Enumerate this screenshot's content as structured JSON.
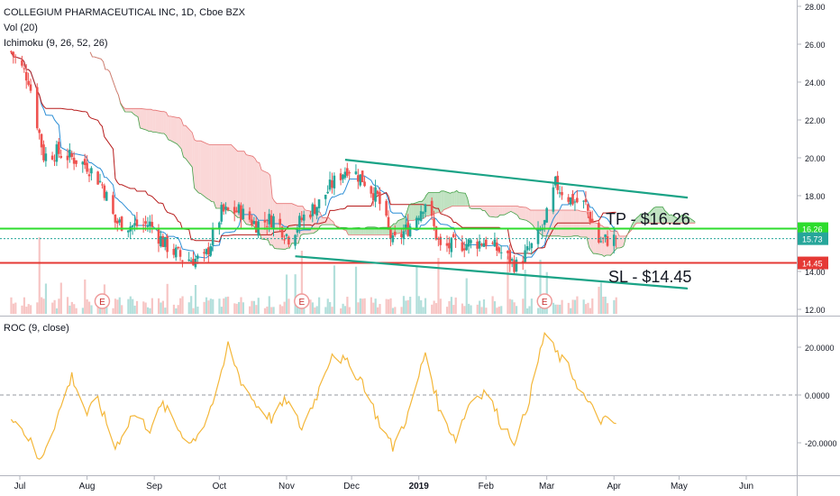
{
  "header": {
    "symbol_line": "COLLEGIUM PHARMACEUTICAL INC, 1D, Cboe BZX",
    "vol_label": "Vol (20)",
    "ichimoku_label": "Ichimoku (9, 26, 52, 26)"
  },
  "roc_panel": {
    "label": "ROC (9, close)"
  },
  "annotations": {
    "tp_text": "TP - $16.26",
    "sl_text": "SL - $14.45"
  },
  "colors": {
    "up": "#26a69a",
    "down": "#ef5350",
    "tp_line": "#2ddc2d",
    "sl_line": "#e53935",
    "channel": "#1aa386",
    "roc_line": "#f4b73a",
    "tenkan": "#2d8fd6",
    "kijun": "#b71c1c",
    "cloud_bull": "#a5d6a7",
    "cloud_bear": "#f8c6c6"
  },
  "chart_data": [
    {
      "type": "candlestick",
      "title": "COLLEGIUM PHARMACEUTICAL INC, 1D, Cboe BZX",
      "y_axis": {
        "ticks": [
          "28.00",
          "26.00",
          "24.00",
          "22.00",
          "20.00",
          "18.00",
          "16.00",
          "14.00",
          "12.00"
        ],
        "ylim": [
          11.8,
          28.4
        ]
      },
      "x_axis": {
        "ticks": [
          "Jul",
          "Aug",
          "Sep",
          "Oct",
          "Nov",
          "Dec",
          "2019",
          "Feb",
          "Mar",
          "Apr",
          "May",
          "Jun"
        ]
      },
      "price_labels": [
        {
          "label": "16.26",
          "value": 16.26,
          "color": "#2ddc2d"
        },
        {
          "label": "15.73",
          "value": 15.73,
          "color": "#26a69a"
        },
        {
          "label": "14.45",
          "value": 14.45,
          "color": "#e53935"
        }
      ],
      "horizontal_lines": [
        {
          "name": "TP",
          "value": 16.26
        },
        {
          "name": "SL",
          "value": 14.45
        }
      ],
      "channel": {
        "upper": [
          {
            "date": "2018-11-28",
            "value": 19.9
          },
          {
            "date": "2019-05-05",
            "value": 17.9
          }
        ],
        "lower": [
          {
            "date": "2018-11-05",
            "value": 14.8
          },
          {
            "date": "2019-05-05",
            "value": 13.1
          }
        ]
      },
      "close_approx": [
        {
          "date": "2018-06-27",
          "value": 25.6
        },
        {
          "date": "2018-07-05",
          "value": 24.2
        },
        {
          "date": "2018-07-12",
          "value": 20.1
        },
        {
          "date": "2018-07-18",
          "value": 20.3
        },
        {
          "date": "2018-07-25",
          "value": 20.0
        },
        {
          "date": "2018-08-01",
          "value": 19.6
        },
        {
          "date": "2018-08-08",
          "value": 18.6
        },
        {
          "date": "2018-08-14",
          "value": 16.6
        },
        {
          "date": "2018-08-22",
          "value": 16.4
        },
        {
          "date": "2018-08-30",
          "value": 16.5
        },
        {
          "date": "2018-09-06",
          "value": 15.4
        },
        {
          "date": "2018-09-14",
          "value": 14.7
        },
        {
          "date": "2018-09-24",
          "value": 14.6
        },
        {
          "date": "2018-10-02",
          "value": 17.1
        },
        {
          "date": "2018-10-10",
          "value": 17.2
        },
        {
          "date": "2018-10-18",
          "value": 16.5
        },
        {
          "date": "2018-10-26",
          "value": 16.8
        },
        {
          "date": "2018-11-02",
          "value": 15.8
        },
        {
          "date": "2018-11-09",
          "value": 16.9
        },
        {
          "date": "2018-11-16",
          "value": 17.6
        },
        {
          "date": "2018-11-22",
          "value": 18.6
        },
        {
          "date": "2018-11-29",
          "value": 19.5
        },
        {
          "date": "2018-12-06",
          "value": 18.9
        },
        {
          "date": "2018-12-13",
          "value": 17.9
        },
        {
          "date": "2018-12-20",
          "value": 15.5
        },
        {
          "date": "2018-12-28",
          "value": 16.4
        },
        {
          "date": "2019-01-04",
          "value": 17.7
        },
        {
          "date": "2019-01-11",
          "value": 15.2
        },
        {
          "date": "2019-01-18",
          "value": 15.4
        },
        {
          "date": "2019-01-25",
          "value": 15.5
        },
        {
          "date": "2019-02-01",
          "value": 15.6
        },
        {
          "date": "2019-02-08",
          "value": 15.0
        },
        {
          "date": "2019-02-15",
          "value": 14.3
        },
        {
          "date": "2019-02-22",
          "value": 15.3
        },
        {
          "date": "2019-02-28",
          "value": 16.5
        },
        {
          "date": "2019-03-05",
          "value": 18.6
        },
        {
          "date": "2019-03-12",
          "value": 17.8
        },
        {
          "date": "2019-03-19",
          "value": 17.5
        },
        {
          "date": "2019-03-25",
          "value": 15.6
        },
        {
          "date": "2019-04-01",
          "value": 15.73
        }
      ]
    },
    {
      "type": "line",
      "title": "ROC (9, close)",
      "y_axis": {
        "ticks": [
          "20.0000",
          "0.0000",
          "-20.0000"
        ],
        "ylim": [
          -30,
          30
        ]
      },
      "series": [
        {
          "values": [
            {
              "date": "2018-06-27",
              "value": -8
            },
            {
              "date": "2018-07-05",
              "value": -18
            },
            {
              "date": "2018-07-10",
              "value": -28
            },
            {
              "date": "2018-07-18",
              "value": -10
            },
            {
              "date": "2018-07-25",
              "value": 8
            },
            {
              "date": "2018-08-01",
              "value": -8
            },
            {
              "date": "2018-08-06",
              "value": -2
            },
            {
              "date": "2018-08-14",
              "value": -22
            },
            {
              "date": "2018-08-22",
              "value": -8
            },
            {
              "date": "2018-08-30",
              "value": -14
            },
            {
              "date": "2018-09-05",
              "value": -4
            },
            {
              "date": "2018-09-12",
              "value": -14
            },
            {
              "date": "2018-09-18",
              "value": -20
            },
            {
              "date": "2018-09-24",
              "value": -12
            },
            {
              "date": "2018-10-01",
              "value": 4
            },
            {
              "date": "2018-10-05",
              "value": 21
            },
            {
              "date": "2018-10-11",
              "value": 6
            },
            {
              "date": "2018-10-18",
              "value": -4
            },
            {
              "date": "2018-10-25",
              "value": -10
            },
            {
              "date": "2018-11-01",
              "value": -2
            },
            {
              "date": "2018-11-08",
              "value": -14
            },
            {
              "date": "2018-11-15",
              "value": 0
            },
            {
              "date": "2018-11-22",
              "value": 18
            },
            {
              "date": "2018-11-29",
              "value": 13
            },
            {
              "date": "2018-12-06",
              "value": 6
            },
            {
              "date": "2018-12-13",
              "value": -10
            },
            {
              "date": "2018-12-20",
              "value": -22
            },
            {
              "date": "2018-12-28",
              "value": -6
            },
            {
              "date": "2019-01-04",
              "value": 18
            },
            {
              "date": "2019-01-11",
              "value": -8
            },
            {
              "date": "2019-01-18",
              "value": -18
            },
            {
              "date": "2019-01-25",
              "value": -2
            },
            {
              "date": "2019-02-01",
              "value": 2
            },
            {
              "date": "2019-02-08",
              "value": -12
            },
            {
              "date": "2019-02-15",
              "value": -20
            },
            {
              "date": "2019-02-22",
              "value": 2
            },
            {
              "date": "2019-02-28",
              "value": 26
            },
            {
              "date": "2019-03-05",
              "value": 18
            },
            {
              "date": "2019-03-12",
              "value": 10
            },
            {
              "date": "2019-03-19",
              "value": -2
            },
            {
              "date": "2019-03-25",
              "value": -10
            },
            {
              "date": "2019-04-01",
              "value": -12
            }
          ]
        }
      ]
    }
  ]
}
